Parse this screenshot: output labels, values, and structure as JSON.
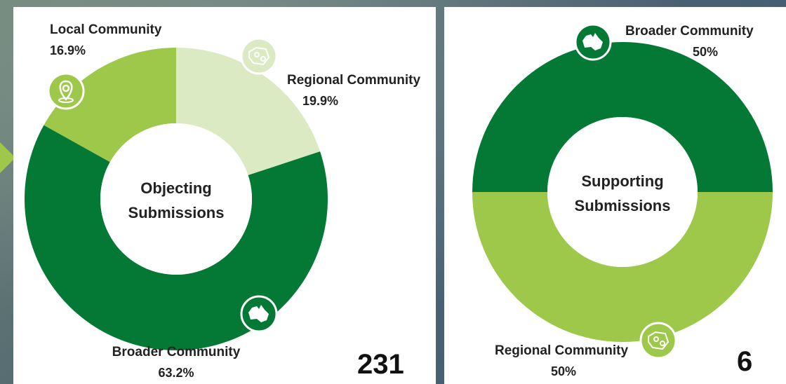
{
  "chart_data": [
    {
      "type": "pie",
      "donut": true,
      "center_label": [
        "Objecting",
        "Submissions"
      ],
      "total": "231",
      "slices": [
        {
          "label": "Local Community",
          "value": 16.9,
          "value_label": "16.9%",
          "color": "#9dc84a",
          "icon": "map-pin-icon"
        },
        {
          "label": "Regional Community",
          "value": 19.9,
          "value_label": "19.9%",
          "color": "#dceac4",
          "icon": "region-map-icon"
        },
        {
          "label": "Broader Community",
          "value": 63.2,
          "value_label": "63.2%",
          "color": "#037935",
          "icon": "australia-map-icon"
        }
      ]
    },
    {
      "type": "pie",
      "donut": true,
      "center_label": [
        "Supporting",
        "Submissions"
      ],
      "total": "6",
      "slices": [
        {
          "label": "Broader Community",
          "value": 50,
          "value_label": "50%",
          "color": "#037935",
          "icon": "australia-map-icon"
        },
        {
          "label": "Regional Community",
          "value": 50,
          "value_label": "50%",
          "color": "#9dc84a",
          "icon": "region-map-icon"
        }
      ]
    }
  ]
}
